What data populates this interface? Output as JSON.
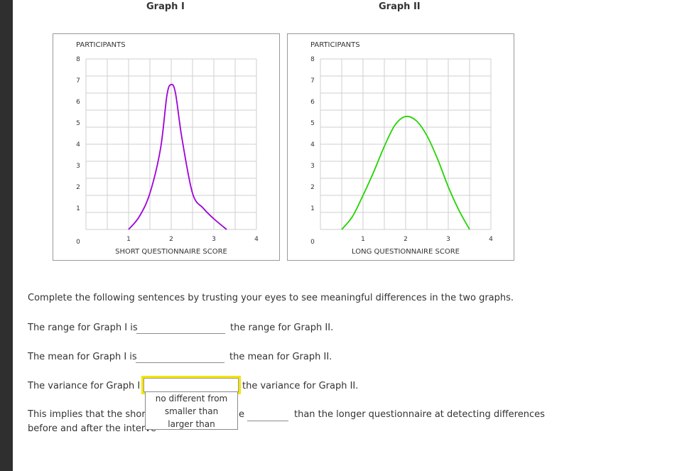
{
  "graphs": {
    "graph1": {
      "title": "Graph I",
      "ylabel": "PARTICIPANTS",
      "xlabel": "SHORT QUESTIONNAIRE SCORE",
      "color": "#a000d8"
    },
    "graph2": {
      "title": "Graph II",
      "ylabel": "PARTICIPANTS",
      "xlabel": "LONG QUESTIONNAIRE SCORE",
      "color": "#22d400"
    }
  },
  "chart_data": [
    {
      "type": "line",
      "title": "Graph I",
      "xlabel": "SHORT QUESTIONNAIRE SCORE",
      "ylabel": "PARTICIPANTS",
      "xlim": [
        0,
        4
      ],
      "ylim": [
        0,
        8
      ],
      "x_ticks": [
        "1",
        "2",
        "3",
        "4"
      ],
      "y_ticks": [
        "0",
        "1",
        "2",
        "3",
        "4",
        "5",
        "6",
        "7",
        "8"
      ],
      "grid": true,
      "series": [
        {
          "x": [
            1.0,
            1.25,
            1.5,
            1.75,
            1.9,
            2.0,
            2.1,
            2.25,
            2.5,
            2.75,
            3.0,
            3.3
          ],
          "y": [
            0.0,
            0.6,
            1.7,
            3.8,
            6.3,
            6.8,
            6.4,
            4.3,
            1.7,
            1.0,
            0.5,
            0.0
          ]
        }
      ]
    },
    {
      "type": "line",
      "title": "Graph II",
      "xlabel": "LONG QUESTIONNAIRE SCORE",
      "ylabel": "PARTICIPANTS",
      "xlim": [
        0,
        4
      ],
      "ylim": [
        0,
        8
      ],
      "x_ticks": [
        "1",
        "2",
        "3",
        "4"
      ],
      "y_ticks": [
        "0",
        "1",
        "2",
        "3",
        "4",
        "5",
        "6",
        "7",
        "8"
      ],
      "grid": true,
      "series": [
        {
          "x": [
            0.5,
            0.75,
            1.0,
            1.25,
            1.5,
            1.75,
            2.0,
            2.25,
            2.5,
            2.75,
            3.0,
            3.25,
            3.5
          ],
          "y": [
            0.0,
            0.6,
            1.6,
            2.7,
            3.9,
            4.9,
            5.3,
            5.1,
            4.4,
            3.3,
            2.0,
            0.9,
            0.0
          ]
        }
      ]
    }
  ],
  "instructions": "Complete the following sentences by trusting your eyes to see meaningful differences in the two graphs.",
  "sentences": {
    "range_before": "The range for Graph I is",
    "range_after": "the range for Graph II.",
    "mean_before": "The mean for Graph I is",
    "mean_after": "the mean for Graph II.",
    "variance_before": "The variance for Graph I is",
    "variance_after": "the variance for Graph II.",
    "implies_line1_before": "This implies that the shorte",
    "implies_line1_mid": "e",
    "implies_line1_after": "than the longer questionnaire at detecting differences",
    "implies_line2": "before and after the interve"
  },
  "dropdown": {
    "selected": "",
    "options": [
      "no different from",
      "smaller than",
      "larger than"
    ]
  }
}
